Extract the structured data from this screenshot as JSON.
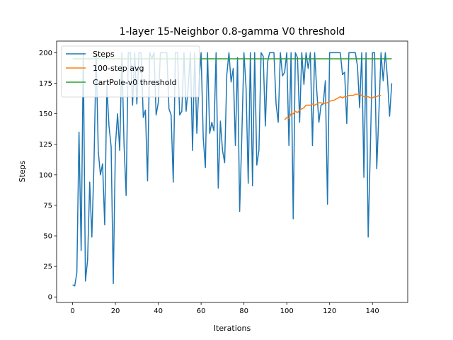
{
  "chart_data": {
    "type": "line",
    "title": "1-layer 15-Neighbor 0.8-gamma V0 threshold",
    "xlabel": "Iterations",
    "ylabel": "Steps",
    "xlim": [
      -7.45,
      156.45
    ],
    "ylim": [
      -4.5,
      209.5
    ],
    "xticks": [
      0,
      20,
      40,
      60,
      80,
      100,
      120,
      140
    ],
    "yticks": [
      0,
      25,
      50,
      75,
      100,
      125,
      150,
      175,
      200
    ],
    "grid": false,
    "legend": "upper-left",
    "series": [
      {
        "name": "Steps",
        "color": "#1f77b4",
        "x_start": 0,
        "values": [
          10,
          9,
          20,
          135,
          38,
          200,
          13,
          30,
          94,
          49,
          110,
          200,
          119,
          100,
          109,
          59,
          173,
          140,
          123,
          11,
          124,
          150,
          120,
          200,
          126,
          83,
          200,
          200,
          157,
          200,
          158,
          200,
          200,
          147,
          153,
          95,
          200,
          195,
          200,
          149,
          159,
          200,
          200,
          200,
          200,
          154,
          149,
          94,
          200,
          200,
          149,
          152,
          200,
          152,
          172,
          200,
          120,
          200,
          134,
          175,
          200,
          130,
          106,
          200,
          134,
          143,
          136,
          200,
          89,
          144,
          120,
          110,
          182,
          200,
          176,
          187,
          124,
          196,
          70,
          131,
          200,
          171,
          93,
          200,
          91,
          200,
          108,
          120,
          200,
          197,
          140,
          192,
          200,
          200,
          200,
          158,
          143,
          200,
          181,
          184,
          200,
          124,
          200,
          64,
          200,
          196,
          143,
          200,
          174,
          200,
          187,
          200,
          124,
          200,
          169,
          143,
          157,
          158,
          177,
          76,
          200,
          200,
          200,
          200,
          200,
          200,
          182,
          184,
          142,
          200,
          200,
          200,
          200,
          189,
          155,
          200,
          98,
          200,
          49,
          120,
          200,
          200,
          105,
          151,
          200,
          177,
          200,
          179,
          148,
          175
        ]
      },
      {
        "name": "100-step avg",
        "color": "#ff7f0e",
        "x_start": 99,
        "values": [
          145,
          147,
          146,
          150,
          150,
          152,
          151,
          153,
          154,
          155,
          157,
          157,
          157,
          158,
          157,
          158,
          159,
          159,
          158,
          159,
          159,
          160,
          161,
          161,
          162,
          163,
          164,
          163,
          164,
          164,
          165,
          165,
          165,
          166,
          166,
          166,
          165,
          164,
          164,
          164,
          163,
          163,
          164,
          164,
          165,
          165
        ]
      },
      {
        "name": "CartPole-v0 threshold",
        "color": "#2ca02c",
        "x": [
          0,
          149
        ],
        "values": [
          195,
          195
        ]
      }
    ]
  }
}
